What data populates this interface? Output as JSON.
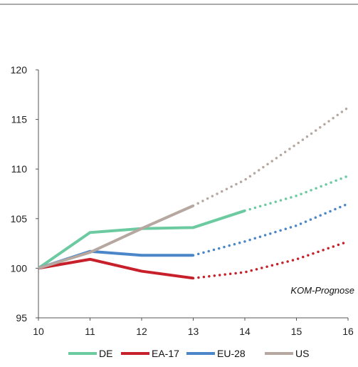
{
  "chart_data": {
    "type": "line",
    "title": "",
    "xlabel": "",
    "ylabel": "",
    "x": [
      10,
      11,
      12,
      13,
      14,
      15,
      16
    ],
    "x_ticks": [
      "10",
      "11",
      "12",
      "13",
      "14",
      "15",
      "16"
    ],
    "y_ticks": [
      "95",
      "100",
      "105",
      "110",
      "115",
      "120"
    ],
    "xlim": [
      10,
      16
    ],
    "ylim": [
      95,
      120
    ],
    "grid": false,
    "legend_position": "bottom",
    "annotation": "KOM-Prognose",
    "series": [
      {
        "name": "DE",
        "color": "#6ccaa0",
        "actual": [
          [
            10,
            100
          ],
          [
            11,
            103.6
          ],
          [
            12,
            104.0
          ],
          [
            13,
            104.1
          ],
          [
            14,
            105.8
          ]
        ],
        "forecast": [
          [
            14,
            105.8
          ],
          [
            15,
            107.3
          ],
          [
            16,
            109.3
          ]
        ]
      },
      {
        "name": "EA-17",
        "color": "#c8202a",
        "actual": [
          [
            10,
            100
          ],
          [
            11,
            100.9
          ],
          [
            12,
            99.7
          ],
          [
            13,
            99.0
          ]
        ],
        "forecast": [
          [
            13,
            99.0
          ],
          [
            14,
            99.6
          ],
          [
            15,
            100.9
          ],
          [
            16,
            102.7
          ]
        ]
      },
      {
        "name": "EU-28",
        "color": "#4a86c8",
        "actual": [
          [
            10,
            100
          ],
          [
            11,
            101.7
          ],
          [
            12,
            101.3
          ],
          [
            13,
            101.3
          ]
        ],
        "forecast": [
          [
            13,
            101.3
          ],
          [
            14,
            102.7
          ],
          [
            15,
            104.3
          ],
          [
            16,
            106.5
          ]
        ]
      },
      {
        "name": "US",
        "color": "#b6a8a0",
        "actual": [
          [
            10,
            100
          ],
          [
            11,
            101.6
          ],
          [
            12,
            104.0
          ],
          [
            13,
            106.3
          ]
        ],
        "forecast": [
          [
            13,
            106.3
          ],
          [
            14,
            108.9
          ],
          [
            15,
            112.5
          ],
          [
            16,
            116.2
          ]
        ]
      }
    ]
  }
}
